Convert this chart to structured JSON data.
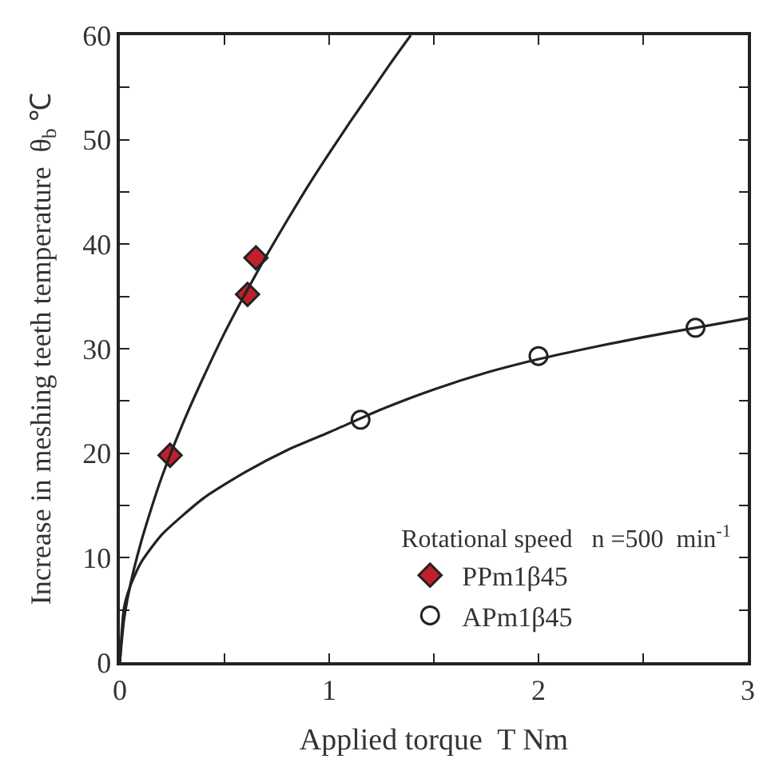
{
  "chart_data": {
    "type": "scatter",
    "xlabel": "Applied torque  T Nm",
    "ylabel": "Increase in meshing teeth temperature  θ$_{b}$ ℃",
    "legend_title": "Rotational speed   n =500  min$^{-1}$",
    "xlim": [
      0,
      3
    ],
    "ylim": [
      0,
      60
    ],
    "xticks": [
      0,
      {
        "value": 0.5,
        "label": null
      },
      1,
      {
        "value": 1.5,
        "label": null
      },
      2,
      {
        "value": 2.5,
        "label": null
      },
      3
    ],
    "yticks": [
      0,
      {
        "value": 5,
        "label": null
      },
      10,
      {
        "value": 15,
        "label": null
      },
      20,
      {
        "value": 25,
        "label": null
      },
      30,
      {
        "value": 35,
        "label": null
      },
      40,
      {
        "value": 45,
        "label": null
      },
      50,
      {
        "value": 55,
        "label": null
      },
      60
    ],
    "legend": "bottom right",
    "series": [
      {
        "name": "PPm1β45",
        "marker": "diamond",
        "color": "#c0202a",
        "x": [
          0.24,
          0.61,
          0.65
        ],
        "values": [
          19.8,
          35.2,
          38.7
        ]
      },
      {
        "name": "APm1β45",
        "marker": "circle",
        "color": "#ffffff",
        "x": [
          1.15,
          2.0,
          2.75
        ],
        "values": [
          23.2,
          29.3,
          32.0
        ]
      },
      {
        "type": "line",
        "color": "#222222",
        "x": [
          0,
          0.02,
          0.05,
          0.1,
          0.15,
          0.2,
          0.3,
          0.4,
          0.5,
          0.6,
          0.7,
          0.8,
          0.9,
          1.0,
          1.1,
          1.2,
          1.3,
          1.39
        ],
        "values": [
          0,
          4.1,
          7.4,
          11.4,
          14.7,
          17.7,
          22.8,
          27.3,
          31.5,
          35.3,
          38.9,
          42.3,
          45.6,
          48.7,
          51.7,
          54.6,
          57.5,
          60.0
        ]
      },
      {
        "type": "line",
        "color": "#222222",
        "x": [
          0,
          0.02,
          0.05,
          0.1,
          0.2,
          0.4,
          0.6,
          0.8,
          1.0,
          1.25,
          1.5,
          1.75,
          2.0,
          2.25,
          2.5,
          2.75,
          3.0
        ],
        "values": [
          0,
          5.2,
          7.3,
          9.5,
          12.2,
          15.7,
          18.2,
          20.3,
          22.0,
          24.2,
          26.1,
          27.7,
          29.0,
          30.1,
          31.1,
          32.0,
          32.9
        ]
      }
    ]
  }
}
